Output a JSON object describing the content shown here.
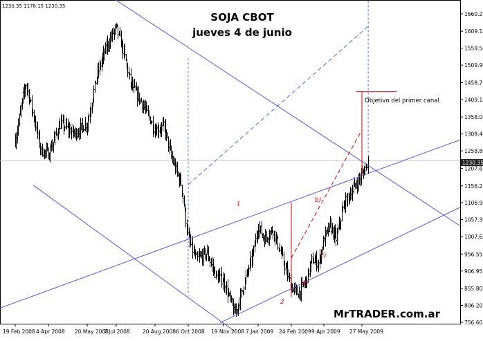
{
  "chart_data": {
    "type": "candlestick",
    "title": "SOJA  CBOT",
    "subtitle": "jueves 4 de junio",
    "ohlc_readout": "1230.35 1178.15 1230.35",
    "watermark": "MrTRADER.com.ar",
    "last_price_label": "1230.35",
    "ylim": [
      730,
      1700
    ],
    "y_ticks": [
      "1660.25",
      "1609.15",
      "1559.50",
      "1509.90",
      "1458.75",
      "1409.15",
      "1358.00",
      "1308.40",
      "1258.80",
      "1207.65",
      "1156.25",
      "1106.90",
      "1057.30",
      "1007.65",
      "956.55",
      "906.95",
      "855.80",
      "806.20",
      "756.60"
    ],
    "x_ticks": [
      "19 Feb 2008",
      "4 Apr 2008",
      "20 May 2008",
      "7 Jul 2008",
      "20 Aug 2008",
      "6 Oct 2008",
      "19 Nov 2008",
      "7 Jan 2009",
      "24 Feb 2009",
      "9 Apr 2009",
      "27 May 2009"
    ],
    "price_path": [
      [
        "19 Feb 2008",
        1290
      ],
      [
        "4 Mar 2008",
        1460
      ],
      [
        "18 Mar 2008",
        1330
      ],
      [
        "25 Mar 2008",
        1260
      ],
      [
        "4 Apr 2008",
        1250
      ],
      [
        "18 Apr 2008",
        1340
      ],
      [
        "5 May 2008",
        1310
      ],
      [
        "20 May 2008",
        1340
      ],
      [
        "5 Jun 2008",
        1480
      ],
      [
        "20 Jun 2008",
        1560
      ],
      [
        "30 Jun 2008",
        1600
      ],
      [
        "7 Jul 2008",
        1620
      ],
      [
        "15 Jul 2008",
        1550
      ],
      [
        "24 Jul 2008",
        1450
      ],
      [
        "5 Aug 2008",
        1400
      ],
      [
        "20 Aug 2008",
        1320
      ],
      [
        "2 Sep 2008",
        1330
      ],
      [
        "12 Sep 2008",
        1240
      ],
      [
        "26 Sep 2008",
        1160
      ],
      [
        "6 Oct 2008",
        1000
      ],
      [
        "16 Oct 2008",
        940
      ],
      [
        "29 Oct 2008",
        960
      ],
      [
        "10 Nov 2008",
        890
      ],
      [
        "19 Nov 2008",
        880
      ],
      [
        "5 Dec 2008",
        780
      ],
      [
        "18 Dec 2008",
        870
      ],
      [
        "31 Dec 2008",
        960
      ],
      [
        "7 Jan 2009",
        1040
      ],
      [
        "16 Jan 2009",
        1000
      ],
      [
        "28 Jan 2009",
        1030
      ],
      [
        "10 Feb 2009",
        950
      ],
      [
        "24 Feb 2009",
        860
      ],
      [
        "5 Mar 2009",
        840
      ],
      [
        "16 Mar 2009",
        880
      ],
      [
        "24 Mar 2009",
        940
      ],
      [
        "2 Apr 2009",
        930
      ],
      [
        "9 Apr 2009",
        1000
      ],
      [
        "17 Apr 2009",
        1040
      ],
      [
        "24 Apr 2009",
        1000
      ],
      [
        "4 May 2009",
        1100
      ],
      [
        "14 May 2009",
        1140
      ],
      [
        "27 May 2009",
        1190
      ],
      [
        "4 Jun 2009",
        1230
      ]
    ],
    "annotations": {
      "target_label": "Objetivo del primer canal",
      "waves": [
        "1",
        "2",
        "a)",
        "b)",
        "c)"
      ]
    }
  },
  "colors": {
    "bars": "#000000",
    "channel_lines": "#5555e8",
    "projection_lines": "#3f6fd8",
    "target_lines": "#d40000",
    "last_price_line": "#c8c8c8",
    "label_box": "#222222"
  }
}
